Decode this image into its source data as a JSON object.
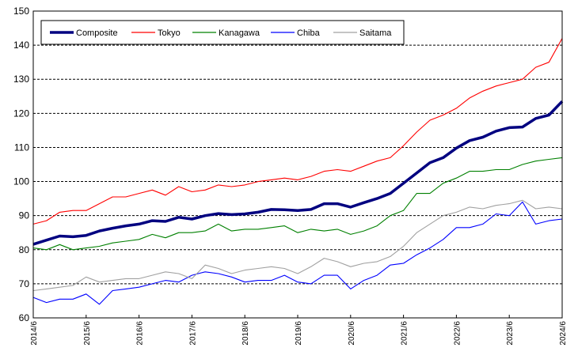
{
  "chart_data": {
    "type": "line",
    "title": "",
    "xlabel": "",
    "ylabel": "",
    "ylim": [
      60,
      150
    ],
    "yticks": [
      60,
      70,
      80,
      90,
      100,
      110,
      120,
      130,
      140,
      150
    ],
    "xticks": [
      "2014/6",
      "2015/6",
      "2016/6",
      "2017/6",
      "2018/6",
      "2019/6",
      "2020/6",
      "2021/6",
      "2022/6",
      "2023/6",
      "2024/6"
    ],
    "x_range": [
      "2014/6",
      "2024/6"
    ],
    "grid": "horizontal dashed",
    "legend_position": "top-left",
    "series": [
      {
        "name": "Composite",
        "color": "#000080",
        "values": [
          {
            "x": "2014/6",
            "y": 81.6
          },
          {
            "x": "2014/9",
            "y": 82.8
          },
          {
            "x": "2014/12",
            "y": 84.0
          },
          {
            "x": "2015/3",
            "y": 83.8
          },
          {
            "x": "2015/6",
            "y": 84.2
          },
          {
            "x": "2015/9",
            "y": 85.5
          },
          {
            "x": "2015/12",
            "y": 86.3
          },
          {
            "x": "2016/3",
            "y": 87.0
          },
          {
            "x": "2016/6",
            "y": 87.5
          },
          {
            "x": "2016/9",
            "y": 88.5
          },
          {
            "x": "2016/12",
            "y": 88.3
          },
          {
            "x": "2017/3",
            "y": 89.5
          },
          {
            "x": "2017/6",
            "y": 89.0
          },
          {
            "x": "2017/9",
            "y": 90.0
          },
          {
            "x": "2017/12",
            "y": 90.6
          },
          {
            "x": "2018/3",
            "y": 90.3
          },
          {
            "x": "2018/6",
            "y": 90.5
          },
          {
            "x": "2018/9",
            "y": 91.0
          },
          {
            "x": "2018/12",
            "y": 91.8
          },
          {
            "x": "2019/3",
            "y": 91.7
          },
          {
            "x": "2019/6",
            "y": 91.5
          },
          {
            "x": "2019/9",
            "y": 91.8
          },
          {
            "x": "2019/12",
            "y": 93.5
          },
          {
            "x": "2020/3",
            "y": 93.5
          },
          {
            "x": "2020/6",
            "y": 92.5
          },
          {
            "x": "2020/9",
            "y": 93.8
          },
          {
            "x": "2020/12",
            "y": 95.0
          },
          {
            "x": "2021/3",
            "y": 96.5
          },
          {
            "x": "2021/6",
            "y": 99.5
          },
          {
            "x": "2021/9",
            "y": 102.5
          },
          {
            "x": "2021/12",
            "y": 105.5
          },
          {
            "x": "2022/3",
            "y": 107.0
          },
          {
            "x": "2022/6",
            "y": 109.8
          },
          {
            "x": "2022/9",
            "y": 112.0
          },
          {
            "x": "2022/12",
            "y": 113.0
          },
          {
            "x": "2023/3",
            "y": 114.8
          },
          {
            "x": "2023/6",
            "y": 115.8
          },
          {
            "x": "2023/9",
            "y": 116.0
          },
          {
            "x": "2023/12",
            "y": 118.5
          },
          {
            "x": "2024/3",
            "y": 119.5
          },
          {
            "x": "2024/6",
            "y": 123.5
          }
        ]
      },
      {
        "name": "Tokyo",
        "color": "#ff0000",
        "values": [
          {
            "x": "2014/6",
            "y": 87.5
          },
          {
            "x": "2014/9",
            "y": 88.5
          },
          {
            "x": "2014/12",
            "y": 91.0
          },
          {
            "x": "2015/3",
            "y": 91.5
          },
          {
            "x": "2015/6",
            "y": 91.5
          },
          {
            "x": "2015/9",
            "y": 93.5
          },
          {
            "x": "2015/12",
            "y": 95.5
          },
          {
            "x": "2016/3",
            "y": 95.5
          },
          {
            "x": "2016/6",
            "y": 96.5
          },
          {
            "x": "2016/9",
            "y": 97.5
          },
          {
            "x": "2016/12",
            "y": 96.0
          },
          {
            "x": "2017/3",
            "y": 98.5
          },
          {
            "x": "2017/6",
            "y": 97.0
          },
          {
            "x": "2017/9",
            "y": 97.5
          },
          {
            "x": "2017/12",
            "y": 99.0
          },
          {
            "x": "2018/3",
            "y": 98.5
          },
          {
            "x": "2018/6",
            "y": 99.0
          },
          {
            "x": "2018/9",
            "y": 100.0
          },
          {
            "x": "2018/12",
            "y": 100.5
          },
          {
            "x": "2019/3",
            "y": 101.0
          },
          {
            "x": "2019/6",
            "y": 100.5
          },
          {
            "x": "2019/9",
            "y": 101.5
          },
          {
            "x": "2019/12",
            "y": 103.0
          },
          {
            "x": "2020/3",
            "y": 103.5
          },
          {
            "x": "2020/6",
            "y": 103.0
          },
          {
            "x": "2020/9",
            "y": 104.5
          },
          {
            "x": "2020/12",
            "y": 106.0
          },
          {
            "x": "2021/3",
            "y": 107.0
          },
          {
            "x": "2021/6",
            "y": 110.5
          },
          {
            "x": "2021/9",
            "y": 114.5
          },
          {
            "x": "2021/12",
            "y": 118.0
          },
          {
            "x": "2022/3",
            "y": 119.5
          },
          {
            "x": "2022/6",
            "y": 121.5
          },
          {
            "x": "2022/9",
            "y": 124.5
          },
          {
            "x": "2022/12",
            "y": 126.5
          },
          {
            "x": "2023/3",
            "y": 128.0
          },
          {
            "x": "2023/6",
            "y": 129.0
          },
          {
            "x": "2023/9",
            "y": 130.0
          },
          {
            "x": "2023/12",
            "y": 133.5
          },
          {
            "x": "2024/3",
            "y": 135.0
          },
          {
            "x": "2024/6",
            "y": 142.0
          }
        ]
      },
      {
        "name": "Kanagawa",
        "color": "#008000",
        "values": [
          {
            "x": "2014/6",
            "y": 80.5
          },
          {
            "x": "2014/9",
            "y": 80.0
          },
          {
            "x": "2014/12",
            "y": 81.5
          },
          {
            "x": "2015/3",
            "y": 80.0
          },
          {
            "x": "2015/6",
            "y": 80.5
          },
          {
            "x": "2015/9",
            "y": 81.0
          },
          {
            "x": "2015/12",
            "y": 82.0
          },
          {
            "x": "2016/3",
            "y": 82.5
          },
          {
            "x": "2016/6",
            "y": 83.0
          },
          {
            "x": "2016/9",
            "y": 84.5
          },
          {
            "x": "2016/12",
            "y": 83.5
          },
          {
            "x": "2017/3",
            "y": 85.0
          },
          {
            "x": "2017/6",
            "y": 85.0
          },
          {
            "x": "2017/9",
            "y": 85.5
          },
          {
            "x": "2017/12",
            "y": 87.5
          },
          {
            "x": "2018/3",
            "y": 85.5
          },
          {
            "x": "2018/6",
            "y": 86.0
          },
          {
            "x": "2018/9",
            "y": 86.0
          },
          {
            "x": "2018/12",
            "y": 86.5
          },
          {
            "x": "2019/3",
            "y": 87.0
          },
          {
            "x": "2019/6",
            "y": 85.0
          },
          {
            "x": "2019/9",
            "y": 86.0
          },
          {
            "x": "2019/12",
            "y": 85.5
          },
          {
            "x": "2020/3",
            "y": 86.0
          },
          {
            "x": "2020/6",
            "y": 84.5
          },
          {
            "x": "2020/9",
            "y": 85.5
          },
          {
            "x": "2020/12",
            "y": 87.0
          },
          {
            "x": "2021/3",
            "y": 90.0
          },
          {
            "x": "2021/6",
            "y": 91.5
          },
          {
            "x": "2021/9",
            "y": 96.5
          },
          {
            "x": "2021/12",
            "y": 96.5
          },
          {
            "x": "2022/3",
            "y": 99.5
          },
          {
            "x": "2022/6",
            "y": 101.0
          },
          {
            "x": "2022/9",
            "y": 103.0
          },
          {
            "x": "2022/12",
            "y": 103.0
          },
          {
            "x": "2023/3",
            "y": 103.5
          },
          {
            "x": "2023/6",
            "y": 103.5
          },
          {
            "x": "2023/9",
            "y": 105.0
          },
          {
            "x": "2023/12",
            "y": 106.0
          },
          {
            "x": "2024/3",
            "y": 106.5
          },
          {
            "x": "2024/6",
            "y": 107.0
          }
        ]
      },
      {
        "name": "Chiba",
        "color": "#0000ff",
        "values": [
          {
            "x": "2014/6",
            "y": 66.0
          },
          {
            "x": "2014/9",
            "y": 64.5
          },
          {
            "x": "2014/12",
            "y": 65.5
          },
          {
            "x": "2015/3",
            "y": 65.5
          },
          {
            "x": "2015/6",
            "y": 67.0
          },
          {
            "x": "2015/9",
            "y": 64.0
          },
          {
            "x": "2015/12",
            "y": 68.0
          },
          {
            "x": "2016/3",
            "y": 68.5
          },
          {
            "x": "2016/6",
            "y": 69.0
          },
          {
            "x": "2016/9",
            "y": 70.0
          },
          {
            "x": "2016/12",
            "y": 71.0
          },
          {
            "x": "2017/3",
            "y": 70.5
          },
          {
            "x": "2017/6",
            "y": 72.5
          },
          {
            "x": "2017/9",
            "y": 73.5
          },
          {
            "x": "2017/12",
            "y": 73.0
          },
          {
            "x": "2018/3",
            "y": 72.0
          },
          {
            "x": "2018/6",
            "y": 70.5
          },
          {
            "x": "2018/9",
            "y": 71.0
          },
          {
            "x": "2018/12",
            "y": 71.0
          },
          {
            "x": "2019/3",
            "y": 72.5
          },
          {
            "x": "2019/6",
            "y": 70.5
          },
          {
            "x": "2019/9",
            "y": 70.0
          },
          {
            "x": "2019/12",
            "y": 72.5
          },
          {
            "x": "2020/3",
            "y": 72.5
          },
          {
            "x": "2020/6",
            "y": 68.5
          },
          {
            "x": "2020/9",
            "y": 71.0
          },
          {
            "x": "2020/12",
            "y": 72.5
          },
          {
            "x": "2021/3",
            "y": 75.5
          },
          {
            "x": "2021/6",
            "y": 76.0
          },
          {
            "x": "2021/9",
            "y": 78.5
          },
          {
            "x": "2021/12",
            "y": 80.5
          },
          {
            "x": "2022/3",
            "y": 83.0
          },
          {
            "x": "2022/6",
            "y": 86.5
          },
          {
            "x": "2022/9",
            "y": 86.5
          },
          {
            "x": "2022/12",
            "y": 87.5
          },
          {
            "x": "2023/3",
            "y": 90.5
          },
          {
            "x": "2023/6",
            "y": 90.0
          },
          {
            "x": "2023/9",
            "y": 94.0
          },
          {
            "x": "2023/12",
            "y": 87.5
          },
          {
            "x": "2024/3",
            "y": 88.5
          },
          {
            "x": "2024/6",
            "y": 89.0
          }
        ]
      },
      {
        "name": "Saitama",
        "color": "#a0a0a0",
        "values": [
          {
            "x": "2014/6",
            "y": 68.0
          },
          {
            "x": "2014/9",
            "y": 68.5
          },
          {
            "x": "2014/12",
            "y": 69.0
          },
          {
            "x": "2015/3",
            "y": 69.5
          },
          {
            "x": "2015/6",
            "y": 72.0
          },
          {
            "x": "2015/9",
            "y": 70.5
          },
          {
            "x": "2015/12",
            "y": 71.0
          },
          {
            "x": "2016/3",
            "y": 71.5
          },
          {
            "x": "2016/6",
            "y": 71.5
          },
          {
            "x": "2016/9",
            "y": 72.5
          },
          {
            "x": "2016/12",
            "y": 73.5
          },
          {
            "x": "2017/3",
            "y": 73.0
          },
          {
            "x": "2017/6",
            "y": 71.5
          },
          {
            "x": "2017/9",
            "y": 75.5
          },
          {
            "x": "2017/12",
            "y": 74.5
          },
          {
            "x": "2018/3",
            "y": 73.0
          },
          {
            "x": "2018/6",
            "y": 74.0
          },
          {
            "x": "2018/9",
            "y": 74.5
          },
          {
            "x": "2018/12",
            "y": 75.0
          },
          {
            "x": "2019/3",
            "y": 74.5
          },
          {
            "x": "2019/6",
            "y": 73.0
          },
          {
            "x": "2019/9",
            "y": 75.0
          },
          {
            "x": "2019/12",
            "y": 77.5
          },
          {
            "x": "2020/3",
            "y": 76.5
          },
          {
            "x": "2020/6",
            "y": 75.0
          },
          {
            "x": "2020/9",
            "y": 76.0
          },
          {
            "x": "2020/12",
            "y": 76.5
          },
          {
            "x": "2021/3",
            "y": 78.0
          },
          {
            "x": "2021/6",
            "y": 81.0
          },
          {
            "x": "2021/9",
            "y": 85.0
          },
          {
            "x": "2021/12",
            "y": 87.5
          },
          {
            "x": "2022/3",
            "y": 90.0
          },
          {
            "x": "2022/6",
            "y": 91.0
          },
          {
            "x": "2022/9",
            "y": 92.5
          },
          {
            "x": "2022/12",
            "y": 92.0
          },
          {
            "x": "2023/3",
            "y": 93.0
          },
          {
            "x": "2023/6",
            "y": 93.5
          },
          {
            "x": "2023/9",
            "y": 94.5
          },
          {
            "x": "2023/12",
            "y": 92.0
          },
          {
            "x": "2024/3",
            "y": 92.5
          },
          {
            "x": "2024/6",
            "y": 92.0
          }
        ]
      }
    ]
  }
}
